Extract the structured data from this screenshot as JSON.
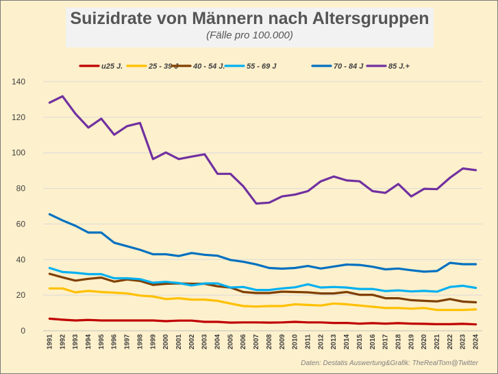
{
  "chart_data": {
    "type": "line",
    "title": "Suizidrate von Männern nach Altersgruppen",
    "subtitle": "(Fälle pro 100.000)",
    "xlabel": "",
    "ylabel": "",
    "ylim": [
      0,
      140
    ],
    "yticks": [
      0,
      20,
      40,
      60,
      80,
      100,
      120,
      140
    ],
    "grid": true,
    "legend_position": "top",
    "x": [
      "1991",
      "1992",
      "1993",
      "1994",
      "1995",
      "1996",
      "1997",
      "1998",
      "1999",
      "2000",
      "2001",
      "2002",
      "2003",
      "2004",
      "2005",
      "2006",
      "2007",
      "2008",
      "2009",
      "2010",
      "2011",
      "2012",
      "2013",
      "2014",
      "2015",
      "2016",
      "2017",
      "2018",
      "2019",
      "2020",
      "2021",
      "2022",
      "2023",
      "2024"
    ],
    "series": [
      {
        "name": "u25 J.",
        "color": "#c00000",
        "values": [
          6.8,
          6.2,
          5.8,
          6.1,
          5.8,
          5.8,
          5.8,
          5.8,
          5.8,
          5.4,
          5.7,
          5.7,
          5.0,
          5.0,
          4.6,
          4.7,
          4.7,
          4.6,
          4.7,
          5.0,
          4.7,
          4.7,
          4.4,
          4.4,
          4.0,
          4.3,
          4.0,
          4.3,
          4.0,
          3.9,
          3.7,
          3.7,
          3.9,
          3.6
        ]
      },
      {
        "name": "25 - 39 J",
        "color": "#ffc000",
        "values": [
          23.8,
          23.8,
          21.6,
          22.4,
          21.8,
          21.4,
          21.0,
          19.8,
          19.3,
          17.8,
          18.3,
          17.5,
          17.5,
          16.8,
          15.3,
          13.9,
          13.6,
          13.9,
          13.9,
          14.9,
          14.5,
          14.2,
          15.3,
          14.9,
          14.2,
          13.5,
          12.8,
          12.8,
          12.4,
          12.8,
          11.7,
          11.7,
          11.7,
          12.0
        ]
      },
      {
        "name": "40 - 54 J.",
        "color": "#7f3f00",
        "values": [
          32.0,
          30.0,
          28.2,
          29.2,
          29.9,
          27.6,
          28.8,
          28.0,
          25.8,
          26.4,
          26.6,
          26.4,
          26.4,
          25.0,
          24.3,
          21.8,
          21.2,
          21.2,
          22.0,
          21.8,
          21.6,
          21.0,
          21.0,
          21.8,
          20.2,
          20.2,
          18.3,
          18.3,
          17.2,
          16.8,
          16.5,
          17.8,
          16.4,
          16.0
        ]
      },
      {
        "name": "55 - 69 J",
        "color": "#00b0f0",
        "values": [
          35.3,
          33.0,
          32.6,
          31.8,
          31.8,
          29.5,
          29.5,
          29.0,
          27.0,
          27.5,
          26.8,
          25.5,
          26.6,
          26.6,
          24.3,
          24.6,
          22.9,
          22.9,
          23.8,
          24.4,
          26.1,
          24.3,
          24.6,
          24.3,
          23.5,
          23.5,
          22.3,
          22.7,
          22.1,
          22.4,
          22.0,
          24.6,
          25.3,
          24.1
        ]
      },
      {
        "name": "70 - 84 J",
        "color": "#0070c0",
        "values": [
          65.5,
          62.0,
          59.0,
          55.2,
          55.2,
          49.5,
          47.5,
          45.5,
          43.0,
          43.0,
          42.0,
          43.7,
          42.7,
          42.2,
          39.8,
          38.8,
          37.3,
          35.3,
          34.9,
          35.3,
          36.4,
          35.0,
          36.1,
          37.2,
          37.0,
          36.0,
          34.5,
          35.0,
          34.0,
          33.2,
          33.6,
          38.2,
          37.4,
          37.4
        ]
      },
      {
        "name": "85 J.+",
        "color": "#7030a0",
        "values": [
          128.2,
          131.8,
          122.0,
          114.2,
          119.2,
          110.2,
          115.0,
          116.8,
          96.5,
          100.2,
          96.5,
          97.9,
          99.2,
          88.2,
          88.2,
          81.2,
          71.5,
          72.0,
          75.5,
          76.5,
          78.5,
          84.0,
          86.7,
          84.5,
          84.0,
          78.5,
          77.5,
          82.5,
          75.5,
          79.8,
          79.6,
          86.0,
          91.2,
          90.3
        ]
      }
    ],
    "source_note": "Daten: Destatis Auswertung&Grafik: TheRealTom@Twitter"
  }
}
